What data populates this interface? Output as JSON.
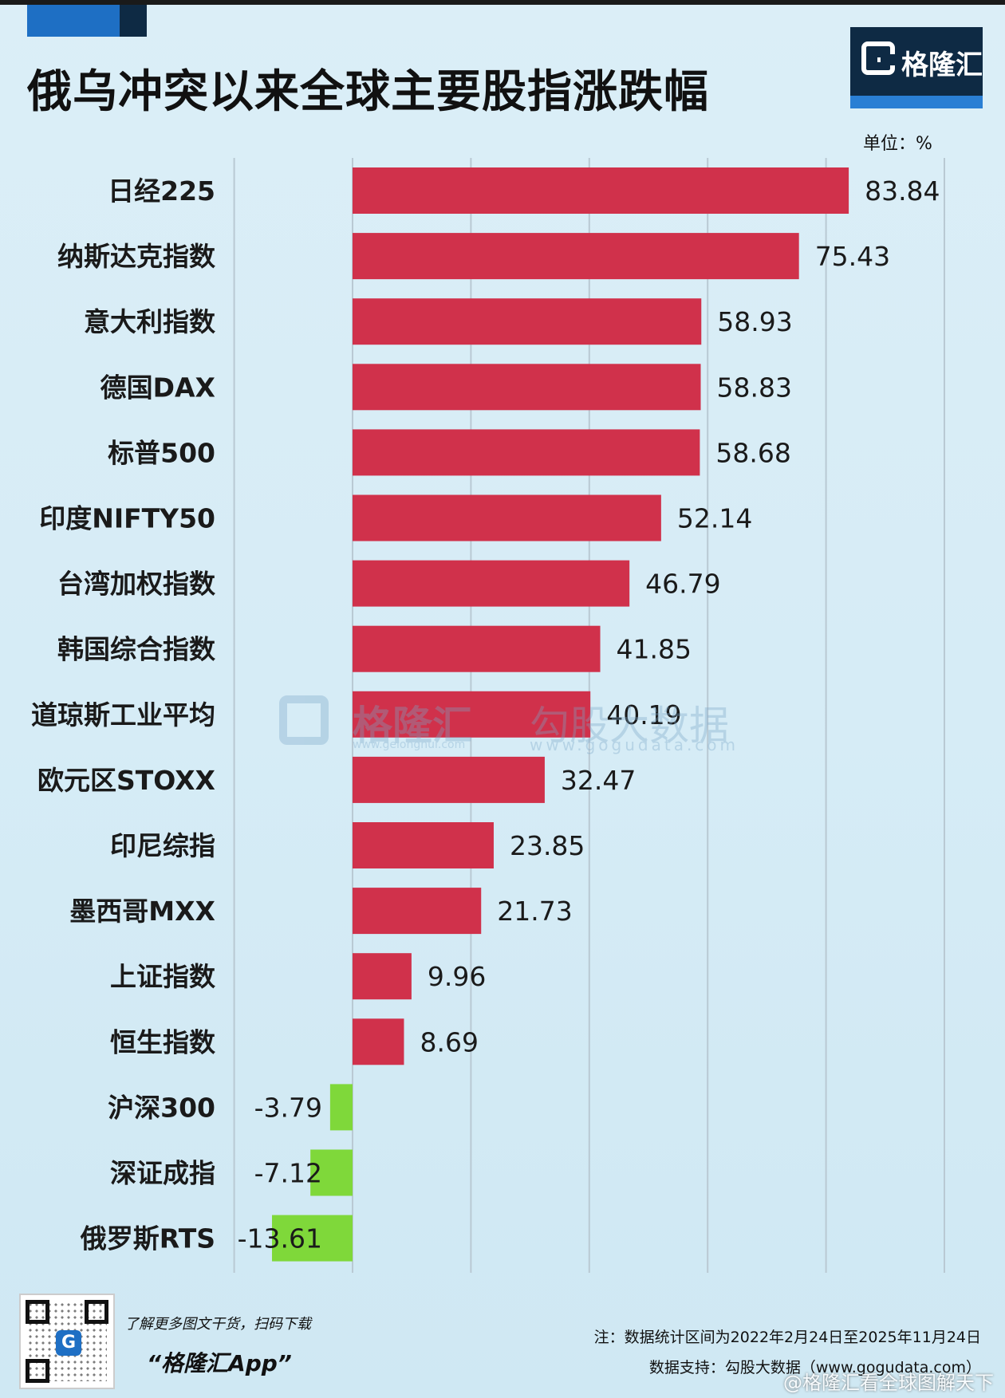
{
  "header": {
    "title": "俄乌冲突以来全球主要股指涨跌幅",
    "logo_text": "格隆汇",
    "unit": "单位：%"
  },
  "watermark": {
    "brand": "格隆汇",
    "brand_url": "www.gelonghui.com",
    "data_brand": "勾股大数据",
    "data_url": "www.gogudata.com"
  },
  "footer": {
    "promo_line": "了解更多图文干货，扫码下载",
    "app_name": "“格隆汇App”",
    "note": "注：数据统计区间为2022年2月24日至2025年11月24日",
    "support": "数据支持：勾股大数据（www.gogudata.com）",
    "weibo": "@格隆汇看全球图解天下"
  },
  "colors": {
    "positive": "#d0314b",
    "negative": "#7fd83a",
    "grid": "#b9c9d3",
    "accent": "#1e6fc4",
    "brand_dark": "#0e2a44"
  },
  "chart_data": {
    "type": "bar",
    "orientation": "horizontal",
    "title": "俄乌冲突以来全球主要股指涨跌幅",
    "unit": "%",
    "xlim": [
      -20,
      100
    ],
    "grid": true,
    "categories": [
      "日经225",
      "纳斯达克指数",
      "意大利指数",
      "德国DAX",
      "标普500",
      "印度NIFTY50",
      "台湾加权指数",
      "韩国综合指数",
      "道琼斯工业平均",
      "欧元区STOXX",
      "印尼综指",
      "墨西哥MXX",
      "上证指数",
      "恒生指数",
      "沪深300",
      "深证成指",
      "俄罗斯RTS"
    ],
    "values": [
      83.84,
      75.43,
      58.93,
      58.83,
      58.68,
      52.14,
      46.79,
      41.85,
      40.19,
      32.47,
      23.85,
      21.73,
      9.96,
      8.69,
      -3.79,
      -7.12,
      -13.61
    ],
    "value_labels": [
      "83.84",
      "75.43",
      "58.93",
      "58.83",
      "58.68",
      "52.14",
      "46.79",
      "41.85",
      "40.19",
      "32.47",
      "23.85",
      "21.73",
      "9.96",
      "8.69",
      "-3.79",
      "-7.12",
      "-13.61"
    ]
  }
}
